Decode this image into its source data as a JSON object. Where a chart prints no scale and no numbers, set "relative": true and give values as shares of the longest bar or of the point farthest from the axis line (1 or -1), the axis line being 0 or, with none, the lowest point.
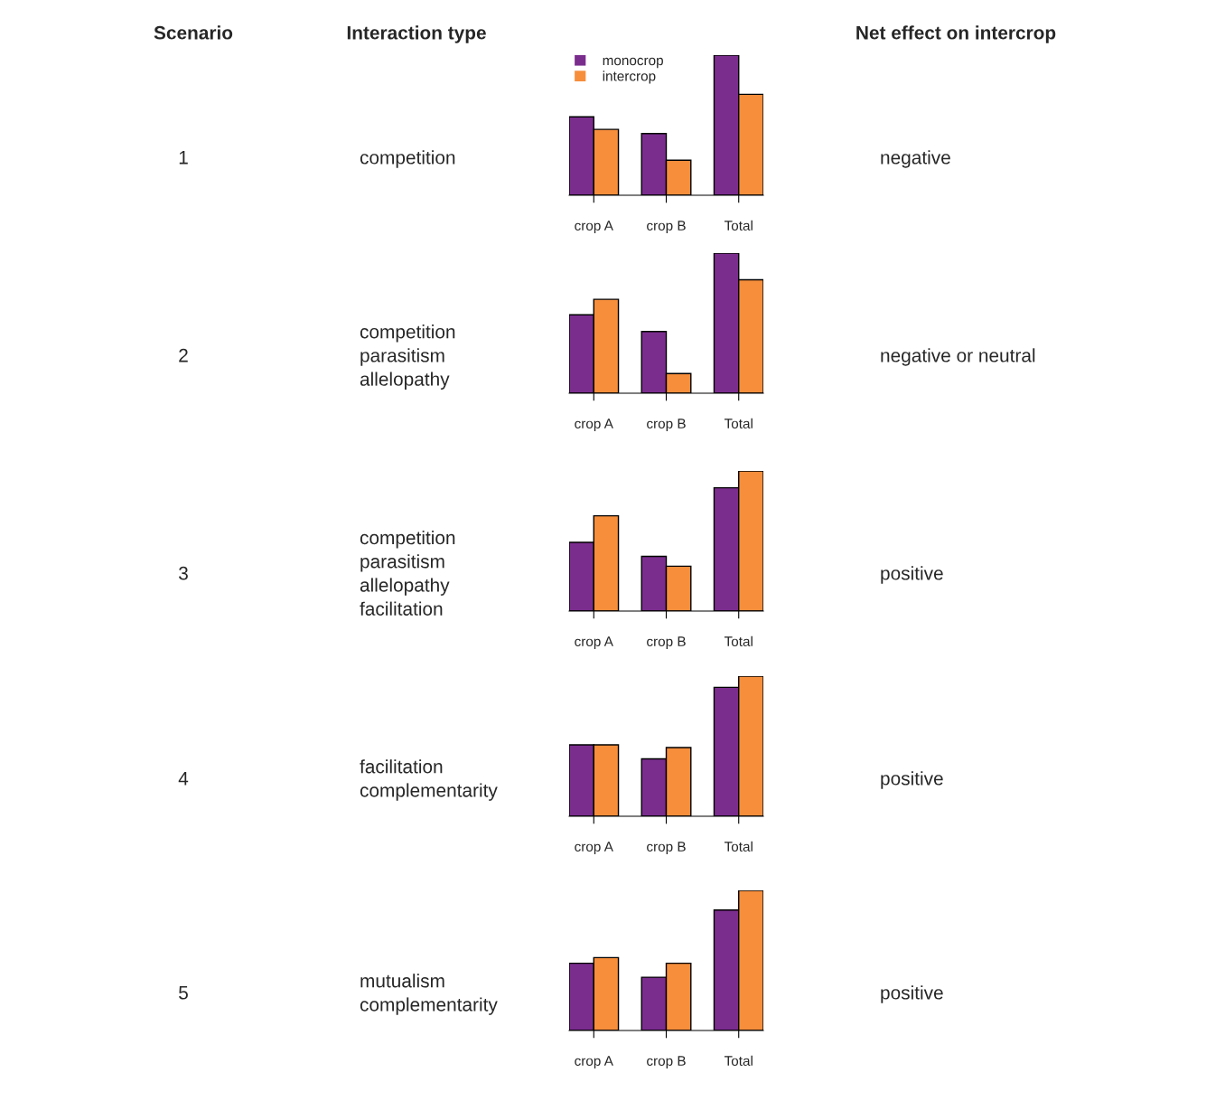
{
  "chart_data": [
    {
      "type": "bar",
      "relative": true,
      "legend": "top left",
      "categories": [
        "crop A",
        "crop B",
        "Total"
      ],
      "annotations": [
        "Scenario",
        "Interaction type",
        "Net effect on intercrop",
        "1",
        "competition",
        "negative"
      ],
      "series": [
        {
          "name": "monocrop",
          "color": "#7b2d8e",
          "values": [
            0.56,
            0.44,
            1
          ]
        },
        {
          "name": "intercrop",
          "color": "#f68e3c",
          "values": [
            0.47,
            0.25,
            0.72
          ]
        }
      ]
    },
    {
      "type": "bar",
      "relative": true,
      "categories": [
        "crop A",
        "crop B",
        "Total"
      ],
      "annotations": [
        "2",
        "competition\nparasitism\nallelopathy",
        "negative or neutral"
      ],
      "series": [
        {
          "color": "#7b2d8e",
          "values": [
            0.56,
            0.44,
            1
          ]
        },
        {
          "color": "#f68e3c",
          "values": [
            0.67,
            0.14,
            0.81
          ]
        }
      ]
    },
    {
      "type": "bar",
      "relative": true,
      "categories": [
        "crop A",
        "crop B",
        "Total"
      ],
      "annotations": [
        "3",
        "competition\nparasitism\nallelopathy\nfacilitation",
        "positive"
      ],
      "series": [
        {
          "color": "#7b2d8e",
          "values": [
            0.49,
            0.39,
            0.88
          ]
        },
        {
          "color": "#f68e3c",
          "values": [
            0.68,
            0.32,
            1
          ]
        }
      ]
    },
    {
      "type": "bar",
      "relative": true,
      "categories": [
        "crop A",
        "crop B",
        "Total"
      ],
      "annotations": [
        "4",
        "facilitation\ncomplementarity",
        "positive"
      ],
      "series": [
        {
          "color": "#7b2d8e",
          "values": [
            0.51,
            0.41,
            0.92
          ]
        },
        {
          "color": "#f68e3c",
          "values": [
            0.51,
            0.49,
            1
          ]
        }
      ]
    },
    {
      "type": "bar",
      "relative": true,
      "categories": [
        "crop A",
        "crop B",
        "Total"
      ],
      "annotations": [
        "5",
        "mutualism\ncomplementarity",
        "positive"
      ],
      "series": [
        {
          "color": "#7b2d8e",
          "values": [
            0.48,
            0.38,
            0.86
          ]
        },
        {
          "color": "#f68e3c",
          "values": [
            0.52,
            0.48,
            1
          ]
        }
      ]
    }
  ]
}
